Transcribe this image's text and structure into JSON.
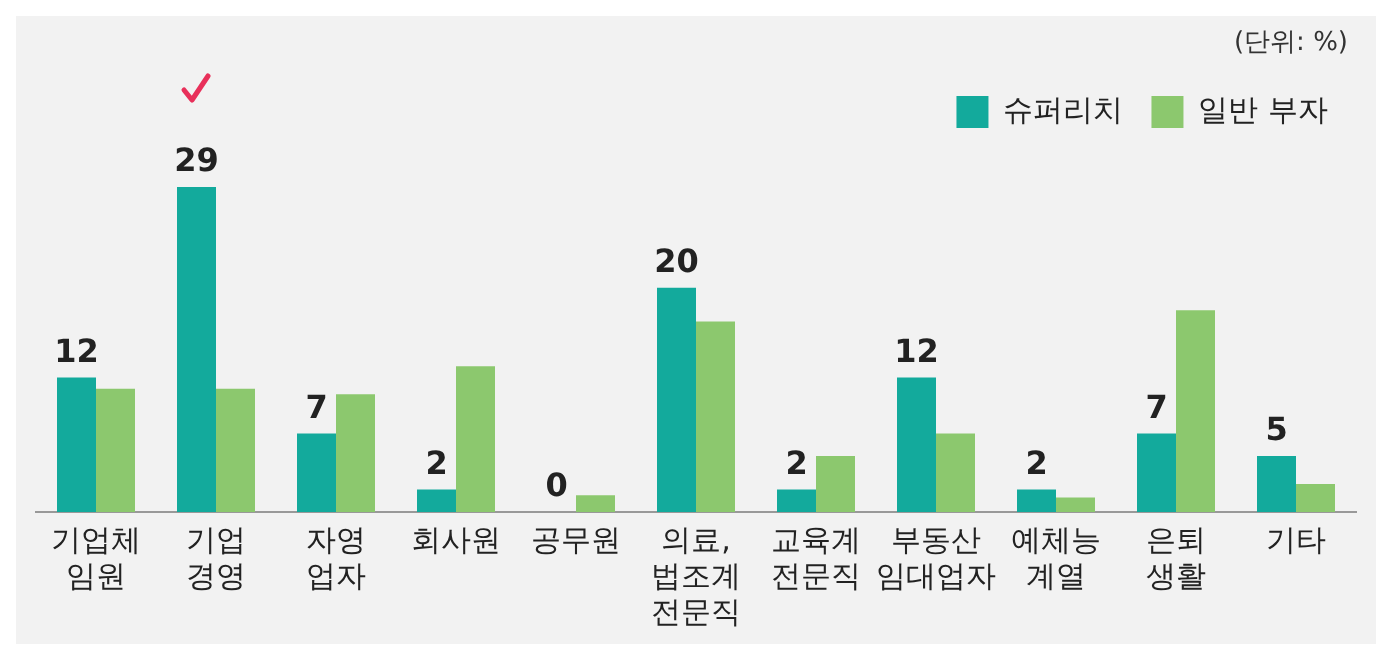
{
  "chart_data": {
    "type": "bar",
    "categories": [
      "기업체 임원",
      "기업 경영",
      "자영 업자",
      "회사원",
      "공무원",
      "의료, 법조계 전문직",
      "교육계 전문직",
      "부동산 임대업자",
      "예체능 계열",
      "은퇴 생활",
      "기타"
    ],
    "series": [
      {
        "name": "슈퍼리치",
        "color": "#13aa9c",
        "values": [
          12,
          29,
          7,
          2,
          0,
          20,
          2,
          12,
          2,
          7,
          5
        ],
        "value_labels": [
          "12",
          "29",
          "7",
          "2",
          "0",
          "20",
          "2",
          "12",
          "2",
          "7",
          "5"
        ]
      },
      {
        "name": "일반 부자",
        "color": "#8cc86e",
        "values": [
          11,
          11,
          10.5,
          13,
          1.5,
          17,
          5,
          7,
          1.3,
          18,
          2.5
        ]
      }
    ],
    "annotations": [
      "(단위: %)"
    ],
    "legend": "top right",
    "grid": false
  }
}
